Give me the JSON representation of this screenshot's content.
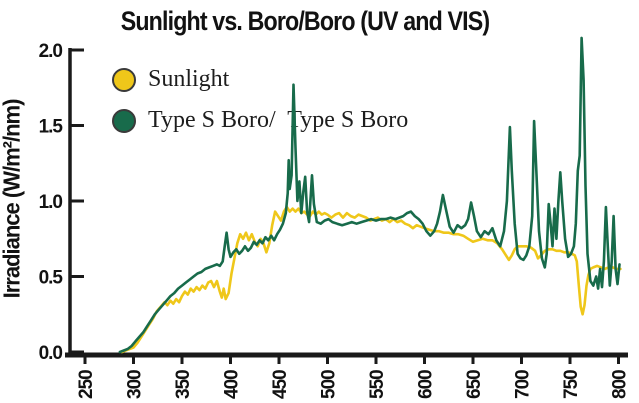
{
  "page": {
    "background": "#ffffff"
  },
  "header": {
    "title": "Sunlight vs. Boro/Boro (UV and VIS)"
  },
  "axes": {
    "y_label": "Irradiance (W/m²/nm)",
    "axis_color": "#1a1a1a",
    "y_tick_labels": [
      "0.0",
      "0.5",
      "1.0",
      "1.5",
      "2.0"
    ],
    "x_tick_labels": [
      "250",
      "300",
      "350",
      "400",
      "450",
      "500",
      "550",
      "600",
      "650",
      "700",
      "750",
      "800"
    ]
  },
  "legend": {
    "items": [
      {
        "label": "Sunlight",
        "color": "#EFC71A"
      },
      {
        "label": "Type S Boro/  Type S Boro",
        "color": "#186B4B"
      }
    ]
  },
  "chart_data": {
    "type": "line",
    "title": "Sunlight vs. Boro/Boro (UV and VIS)",
    "xlabel": "",
    "ylabel": "Irradiance (W/m²/nm)",
    "xlim": [
      250,
      800
    ],
    "ylim": [
      0,
      2.1
    ],
    "x_ticks": [
      250,
      300,
      350,
      400,
      450,
      500,
      550,
      600,
      650,
      700,
      750,
      800
    ],
    "y_ticks": [
      0.0,
      0.5,
      1.0,
      1.5,
      2.0
    ],
    "grid": false,
    "legend_position": "top-left",
    "series": [
      {
        "name": "Sunlight",
        "color": "#EFC71A",
        "points": [
          [
            288,
            0.0
          ],
          [
            292,
            0.01
          ],
          [
            296,
            0.02
          ],
          [
            300,
            0.03
          ],
          [
            304,
            0.06
          ],
          [
            308,
            0.1
          ],
          [
            312,
            0.14
          ],
          [
            316,
            0.18
          ],
          [
            320,
            0.22
          ],
          [
            324,
            0.27
          ],
          [
            328,
            0.3
          ],
          [
            332,
            0.33
          ],
          [
            335,
            0.31
          ],
          [
            338,
            0.34
          ],
          [
            341,
            0.32
          ],
          [
            344,
            0.35
          ],
          [
            347,
            0.33
          ],
          [
            350,
            0.37
          ],
          [
            353,
            0.4
          ],
          [
            356,
            0.38
          ],
          [
            359,
            0.42
          ],
          [
            362,
            0.4
          ],
          [
            365,
            0.43
          ],
          [
            368,
            0.41
          ],
          [
            371,
            0.44
          ],
          [
            374,
            0.42
          ],
          [
            377,
            0.46
          ],
          [
            380,
            0.47
          ],
          [
            383,
            0.43
          ],
          [
            386,
            0.47
          ],
          [
            389,
            0.4
          ],
          [
            391,
            0.36
          ],
          [
            393,
            0.42
          ],
          [
            395,
            0.35
          ],
          [
            398,
            0.39
          ],
          [
            401,
            0.52
          ],
          [
            404,
            0.62
          ],
          [
            407,
            0.72
          ],
          [
            410,
            0.78
          ],
          [
            413,
            0.75
          ],
          [
            416,
            0.79
          ],
          [
            419,
            0.74
          ],
          [
            422,
            0.78
          ],
          [
            425,
            0.73
          ],
          [
            428,
            0.7
          ],
          [
            431,
            0.75
          ],
          [
            434,
            0.72
          ],
          [
            437,
            0.66
          ],
          [
            440,
            0.72
          ],
          [
            443,
            0.84
          ],
          [
            446,
            0.93
          ],
          [
            449,
            0.9
          ],
          [
            452,
            0.87
          ],
          [
            455,
            0.93
          ],
          [
            458,
            0.96
          ],
          [
            461,
            0.93
          ],
          [
            464,
            0.95
          ],
          [
            467,
            0.93
          ],
          [
            470,
            0.95
          ],
          [
            473,
            0.92
          ],
          [
            476,
            0.93
          ],
          [
            479,
            0.91
          ],
          [
            482,
            0.9
          ],
          [
            485,
            0.93
          ],
          [
            488,
            0.91
          ],
          [
            491,
            0.93
          ],
          [
            494,
            0.91
          ],
          [
            497,
            0.92
          ],
          [
            500,
            0.91
          ],
          [
            504,
            0.89
          ],
          [
            508,
            0.91
          ],
          [
            512,
            0.92
          ],
          [
            516,
            0.89
          ],
          [
            520,
            0.92
          ],
          [
            524,
            0.9
          ],
          [
            528,
            0.89
          ],
          [
            532,
            0.91
          ],
          [
            536,
            0.9
          ],
          [
            540,
            0.89
          ],
          [
            544,
            0.87
          ],
          [
            548,
            0.88
          ],
          [
            552,
            0.89
          ],
          [
            556,
            0.87
          ],
          [
            560,
            0.88
          ],
          [
            564,
            0.86
          ],
          [
            568,
            0.88
          ],
          [
            572,
            0.86
          ],
          [
            576,
            0.87
          ],
          [
            580,
            0.85
          ],
          [
            584,
            0.84
          ],
          [
            588,
            0.82
          ],
          [
            592,
            0.84
          ],
          [
            596,
            0.83
          ],
          [
            600,
            0.82
          ],
          [
            605,
            0.81
          ],
          [
            610,
            0.8
          ],
          [
            615,
            0.8
          ],
          [
            620,
            0.79
          ],
          [
            625,
            0.79
          ],
          [
            630,
            0.78
          ],
          [
            635,
            0.78
          ],
          [
            640,
            0.77
          ],
          [
            645,
            0.75
          ],
          [
            650,
            0.73
          ],
          [
            655,
            0.74
          ],
          [
            660,
            0.75
          ],
          [
            665,
            0.74
          ],
          [
            670,
            0.74
          ],
          [
            675,
            0.72
          ],
          [
            680,
            0.68
          ],
          [
            684,
            0.64
          ],
          [
            687,
            0.61
          ],
          [
            690,
            0.64
          ],
          [
            693,
            0.68
          ],
          [
            696,
            0.7
          ],
          [
            700,
            0.7
          ],
          [
            705,
            0.7
          ],
          [
            710,
            0.69
          ],
          [
            714,
            0.67
          ],
          [
            717,
            0.62
          ],
          [
            720,
            0.64
          ],
          [
            724,
            0.67
          ],
          [
            728,
            0.68
          ],
          [
            732,
            0.68
          ],
          [
            736,
            0.67
          ],
          [
            740,
            0.67
          ],
          [
            744,
            0.66
          ],
          [
            748,
            0.66
          ],
          [
            752,
            0.65
          ],
          [
            755,
            0.64
          ],
          [
            757,
            0.6
          ],
          [
            759,
            0.45
          ],
          [
            761,
            0.3
          ],
          [
            763,
            0.25
          ],
          [
            765,
            0.31
          ],
          [
            767,
            0.44
          ],
          [
            769,
            0.51
          ],
          [
            771,
            0.55
          ],
          [
            774,
            0.56
          ],
          [
            778,
            0.57
          ],
          [
            782,
            0.56
          ],
          [
            786,
            0.55
          ],
          [
            790,
            0.56
          ],
          [
            794,
            0.56
          ],
          [
            798,
            0.55
          ],
          [
            802,
            0.55
          ]
        ]
      },
      {
        "name": "Type S Boro/ Type S Boro",
        "color": "#186B4B",
        "points": [
          [
            286,
            0.0
          ],
          [
            290,
            0.01
          ],
          [
            294,
            0.02
          ],
          [
            298,
            0.04
          ],
          [
            302,
            0.07
          ],
          [
            306,
            0.1
          ],
          [
            310,
            0.13
          ],
          [
            314,
            0.17
          ],
          [
            318,
            0.21
          ],
          [
            322,
            0.25
          ],
          [
            326,
            0.28
          ],
          [
            330,
            0.31
          ],
          [
            334,
            0.34
          ],
          [
            338,
            0.37
          ],
          [
            342,
            0.39
          ],
          [
            346,
            0.42
          ],
          [
            350,
            0.44
          ],
          [
            354,
            0.46
          ],
          [
            358,
            0.48
          ],
          [
            362,
            0.5
          ],
          [
            366,
            0.52
          ],
          [
            370,
            0.53
          ],
          [
            374,
            0.55
          ],
          [
            378,
            0.56
          ],
          [
            382,
            0.57
          ],
          [
            386,
            0.58
          ],
          [
            389,
            0.57
          ],
          [
            392,
            0.6
          ],
          [
            394,
            0.7
          ],
          [
            396,
            0.79
          ],
          [
            398,
            0.68
          ],
          [
            400,
            0.63
          ],
          [
            403,
            0.66
          ],
          [
            406,
            0.68
          ],
          [
            409,
            0.65
          ],
          [
            412,
            0.67
          ],
          [
            415,
            0.7
          ],
          [
            418,
            0.67
          ],
          [
            421,
            0.69
          ],
          [
            424,
            0.73
          ],
          [
            427,
            0.71
          ],
          [
            430,
            0.74
          ],
          [
            433,
            0.72
          ],
          [
            436,
            0.76
          ],
          [
            439,
            0.74
          ],
          [
            442,
            0.77
          ],
          [
            445,
            0.74
          ],
          [
            448,
            0.78
          ],
          [
            451,
            0.81
          ],
          [
            454,
            0.85
          ],
          [
            457,
            0.92
          ],
          [
            459,
            1.05
          ],
          [
            460,
            1.27
          ],
          [
            461,
            1.08
          ],
          [
            463,
            1.17
          ],
          [
            465,
            1.77
          ],
          [
            467,
            1.35
          ],
          [
            469,
            1.0
          ],
          [
            471,
            1.13
          ],
          [
            473,
            0.92
          ],
          [
            475,
            1.06
          ],
          [
            477,
            1.16
          ],
          [
            479,
            0.93
          ],
          [
            481,
            0.86
          ],
          [
            484,
            1.17
          ],
          [
            486,
            0.98
          ],
          [
            489,
            0.86
          ],
          [
            493,
            0.85
          ],
          [
            497,
            0.87
          ],
          [
            501,
            0.88
          ],
          [
            505,
            0.86
          ],
          [
            510,
            0.85
          ],
          [
            515,
            0.84
          ],
          [
            520,
            0.85
          ],
          [
            525,
            0.86
          ],
          [
            530,
            0.85
          ],
          [
            535,
            0.86
          ],
          [
            540,
            0.87
          ],
          [
            545,
            0.88
          ],
          [
            550,
            0.87
          ],
          [
            555,
            0.88
          ],
          [
            560,
            0.88
          ],
          [
            565,
            0.89
          ],
          [
            570,
            0.88
          ],
          [
            574,
            0.89
          ],
          [
            578,
            0.9
          ],
          [
            582,
            0.92
          ],
          [
            586,
            0.93
          ],
          [
            590,
            0.9
          ],
          [
            594,
            0.88
          ],
          [
            598,
            0.85
          ],
          [
            602,
            0.8
          ],
          [
            606,
            0.77
          ],
          [
            610,
            0.8
          ],
          [
            613,
            0.85
          ],
          [
            616,
            0.93
          ],
          [
            619,
            1.04
          ],
          [
            622,
            0.95
          ],
          [
            626,
            0.83
          ],
          [
            630,
            0.79
          ],
          [
            634,
            0.84
          ],
          [
            638,
            0.82
          ],
          [
            642,
            0.84
          ],
          [
            645,
            0.88
          ],
          [
            648,
            0.99
          ],
          [
            651,
            0.9
          ],
          [
            654,
            0.8
          ],
          [
            658,
            0.76
          ],
          [
            662,
            0.8
          ],
          [
            666,
            0.78
          ],
          [
            670,
            0.82
          ],
          [
            674,
            0.74
          ],
          [
            678,
            0.7
          ],
          [
            682,
            0.8
          ],
          [
            685,
            1.0
          ],
          [
            688,
            1.49
          ],
          [
            690,
            1.2
          ],
          [
            693,
            0.85
          ],
          [
            696,
            0.65
          ],
          [
            699,
            0.62
          ],
          [
            702,
            0.61
          ],
          [
            705,
            0.64
          ],
          [
            708,
            0.7
          ],
          [
            711,
            0.9
          ],
          [
            713,
            1.53
          ],
          [
            715,
            1.25
          ],
          [
            718,
            0.8
          ],
          [
            721,
            0.62
          ],
          [
            724,
            0.56
          ],
          [
            726,
            0.65
          ],
          [
            728,
            0.98
          ],
          [
            730,
            0.85
          ],
          [
            732,
            0.7
          ],
          [
            734,
            0.95
          ],
          [
            736,
            0.75
          ],
          [
            738,
            1.0
          ],
          [
            740,
            1.19
          ],
          [
            742,
            1.0
          ],
          [
            745,
            0.75
          ],
          [
            748,
            0.63
          ],
          [
            751,
            0.65
          ],
          [
            754,
            0.7
          ],
          [
            756,
            0.85
          ],
          [
            758,
            1.2
          ],
          [
            760,
            1.3
          ],
          [
            762,
            2.08
          ],
          [
            764,
            1.8
          ],
          [
            766,
            1.1
          ],
          [
            768,
            0.65
          ],
          [
            771,
            0.47
          ],
          [
            774,
            0.44
          ],
          [
            777,
            0.5
          ],
          [
            779,
            0.42
          ],
          [
            781,
            0.55
          ],
          [
            783,
            0.43
          ],
          [
            785,
            0.6
          ],
          [
            787,
            0.96
          ],
          [
            789,
            0.7
          ],
          [
            791,
            0.44
          ],
          [
            793,
            0.6
          ],
          [
            795,
            0.9
          ],
          [
            797,
            0.55
          ],
          [
            799,
            0.45
          ],
          [
            801,
            0.58
          ]
        ]
      }
    ]
  }
}
